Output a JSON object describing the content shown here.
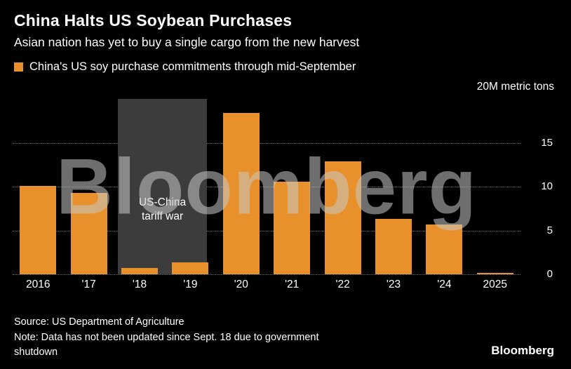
{
  "header": {
    "title": "China Halts US Soybean Purchases",
    "subtitle": "Asian nation has yet to buy a single cargo from the new harvest",
    "legend_label": "China's US soy purchase commitments through mid-September"
  },
  "colors": {
    "background": "#000000",
    "bar": "#E8912C",
    "annotation_bg": "#3C3C3C",
    "grid": "#6E6E6E",
    "watermark": "#C8C8C8"
  },
  "chart_data": {
    "type": "bar",
    "title": "China Halts US Soybean Purchases",
    "subtitle": "Asian nation has yet to buy a single cargo from the new harvest",
    "series_label": "China's US soy purchase commitments through mid-September",
    "categories": [
      "2016",
      "'17",
      "'18",
      "'19",
      "'20",
      "'21",
      "'22",
      "'23",
      "'24",
      "2025"
    ],
    "values": [
      10.1,
      9.3,
      0.7,
      1.4,
      18.4,
      10.6,
      12.9,
      6.3,
      5.7,
      0.05
    ],
    "unit_label": "20M metric tons",
    "ylim": [
      0,
      20
    ],
    "yticks": [
      0,
      5,
      10,
      15
    ],
    "grid": "dotted-horizontal",
    "legend_position": "top-left",
    "watermark": "Bloomberg",
    "annotation": {
      "label_line1": "US-China",
      "label_line2": "tariff war",
      "span_categories": [
        "'18",
        "'19"
      ]
    }
  },
  "footer": {
    "source": "Source: US Department of Agriculture",
    "note": "Note: Data has not been updated since Sept. 18 due to government shutdown",
    "brand": "Bloomberg"
  }
}
